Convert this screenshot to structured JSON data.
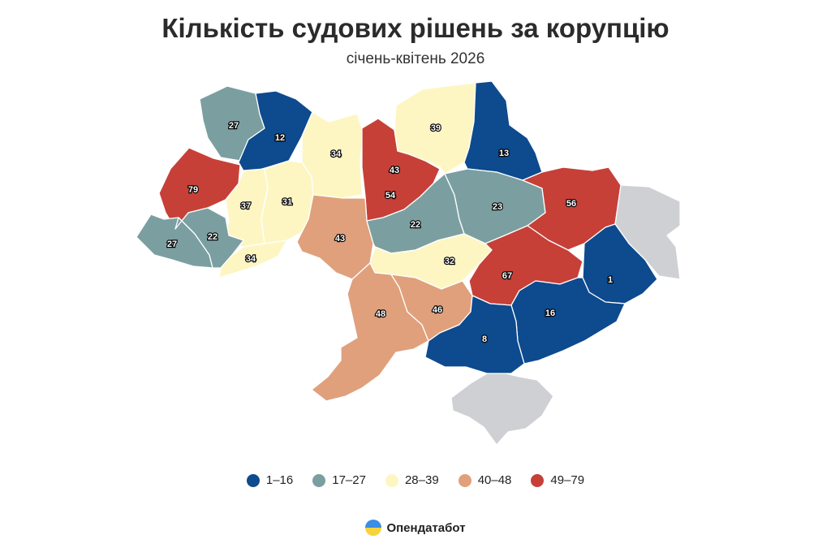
{
  "title": "Кількість судових рішень за корупцію",
  "subtitle": "січень-квітень 2026",
  "colors": {
    "c1": "#0d4a8e",
    "c2": "#7b9fa1",
    "c3": "#fdf6c3",
    "c4": "#e0a07c",
    "c5": "#c64038",
    "nodata": "#cfd0d3"
  },
  "legend": [
    {
      "label": "1–16",
      "color": "#0d4a8e"
    },
    {
      "label": "17–27",
      "color": "#7b9fa1"
    },
    {
      "label": "28–39",
      "color": "#fdf6c3"
    },
    {
      "label": "40–48",
      "color": "#e0a07c"
    },
    {
      "label": "49–79",
      "color": "#c64038"
    }
  ],
  "regions": [
    {
      "value": "27",
      "class": "c2"
    },
    {
      "value": "12",
      "class": "c1"
    },
    {
      "value": "79",
      "class": "c5"
    },
    {
      "value": "37",
      "class": "c3"
    },
    {
      "value": "31",
      "class": "c3"
    },
    {
      "value": "34",
      "class": "c3"
    },
    {
      "value": "43",
      "class": "c4"
    },
    {
      "value": "54",
      "class": "c5"
    },
    {
      "value": "39",
      "class": "c3"
    },
    {
      "value": "13",
      "class": "c1"
    },
    {
      "value": "27",
      "class": "c2"
    },
    {
      "value": "22",
      "class": "c2"
    },
    {
      "value": "34",
      "class": "c3"
    },
    {
      "value": "43",
      "class": "c4"
    },
    {
      "value": "22",
      "class": "c2"
    },
    {
      "value": "23",
      "class": "c2"
    },
    {
      "value": "56",
      "class": "c5"
    },
    {
      "value": "32",
      "class": "c3"
    },
    {
      "value": "67",
      "class": "c5"
    },
    {
      "value": "1",
      "class": "c1"
    },
    {
      "value": "48",
      "class": "c4"
    },
    {
      "value": "46",
      "class": "c4"
    },
    {
      "value": "16",
      "class": "c1"
    },
    {
      "value": "8",
      "class": "c1"
    }
  ],
  "brand": {
    "name": "Опендатабот"
  }
}
